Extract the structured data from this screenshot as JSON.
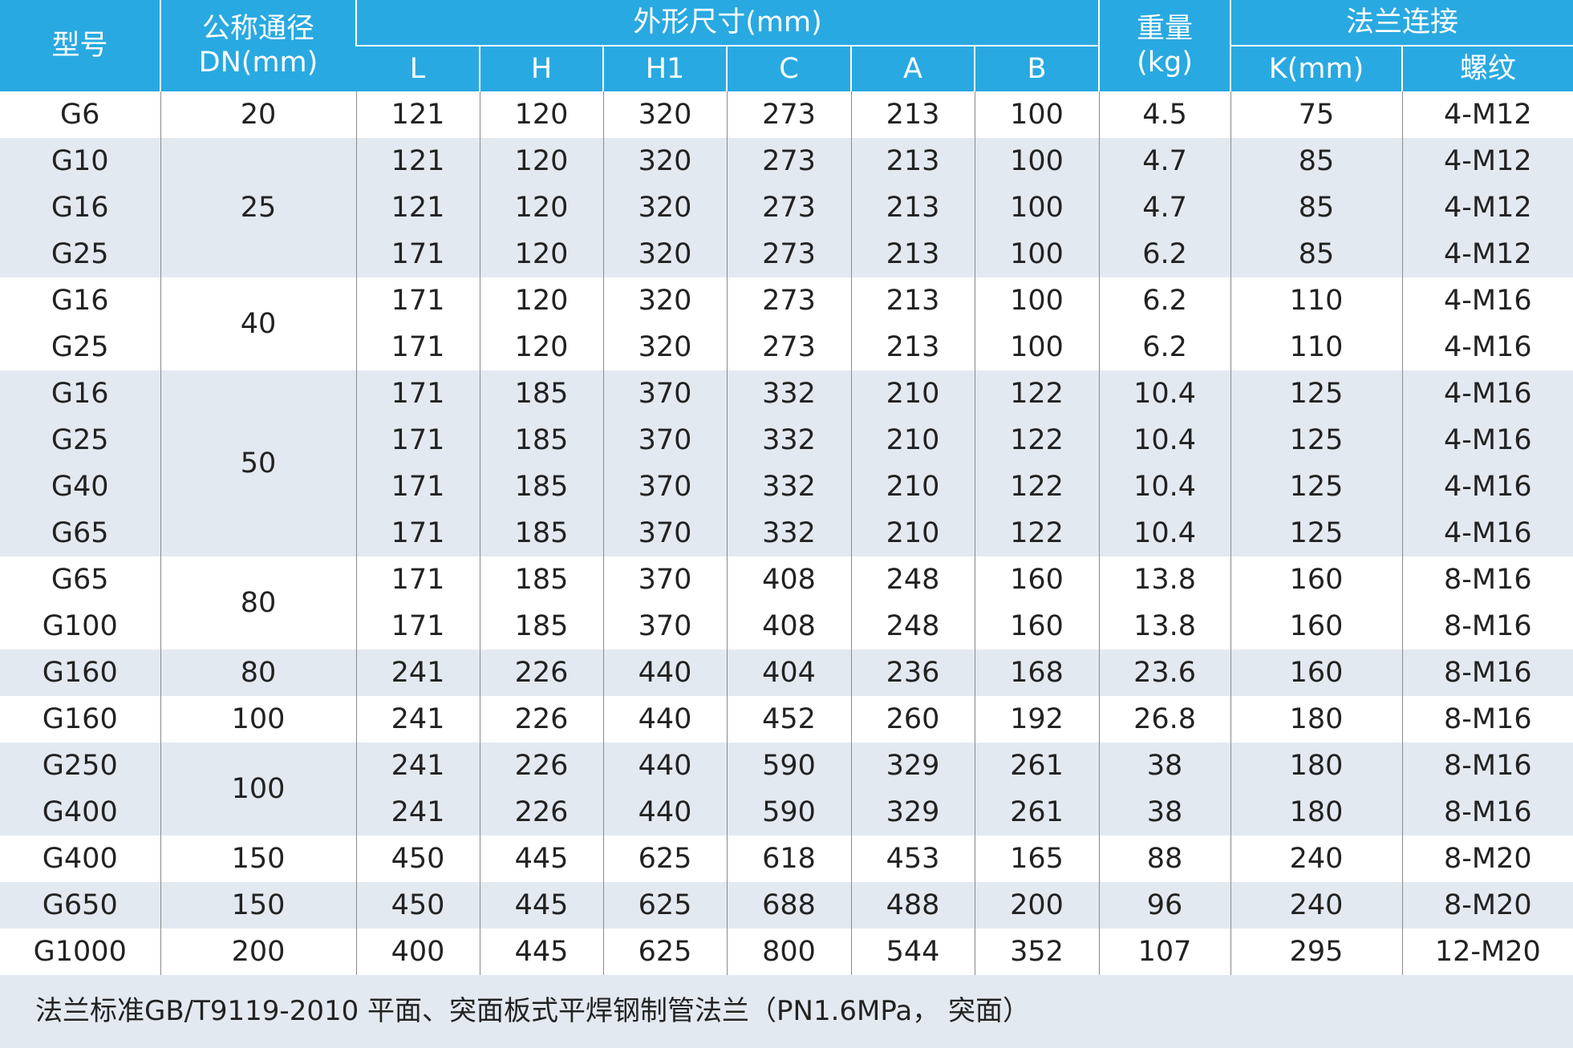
{
  "header": {
    "model": "型号",
    "dn": [
      "公称通径",
      "DN(mm)"
    ],
    "dimensions": "外形尺寸(mm)",
    "dimension_columns": [
      "L",
      "H",
      "H1",
      "C",
      "A",
      "B"
    ],
    "weight": [
      "重量",
      "(kg)"
    ],
    "flange": "法兰连接",
    "flange_columns": [
      "K(mm)",
      "螺纹"
    ]
  },
  "groups": [
    {
      "dn": 20,
      "rows": [
        [
          "G6",
          121,
          120,
          320,
          273,
          213,
          100,
          4.5,
          75,
          "4-M12"
        ]
      ]
    },
    {
      "dn": 25,
      "rows": [
        [
          "G10",
          121,
          120,
          320,
          273,
          213,
          100,
          4.7,
          85,
          "4-M12"
        ],
        [
          "G16",
          121,
          120,
          320,
          273,
          213,
          100,
          4.7,
          85,
          "4-M12"
        ],
        [
          "G25",
          171,
          120,
          320,
          273,
          213,
          100,
          6.2,
          85,
          "4-M12"
        ]
      ]
    },
    {
      "dn": 40,
      "rows": [
        [
          "G16",
          171,
          120,
          320,
          273,
          213,
          100,
          6.2,
          110,
          "4-M16"
        ],
        [
          "G25",
          171,
          120,
          320,
          273,
          213,
          100,
          6.2,
          110,
          "4-M16"
        ]
      ]
    },
    {
      "dn": 50,
      "rows": [
        [
          "G16",
          171,
          185,
          370,
          332,
          210,
          122,
          10.4,
          125,
          "4-M16"
        ],
        [
          "G25",
          171,
          185,
          370,
          332,
          210,
          122,
          10.4,
          125,
          "4-M16"
        ],
        [
          "G40",
          171,
          185,
          370,
          332,
          210,
          122,
          10.4,
          125,
          "4-M16"
        ],
        [
          "G65",
          171,
          185,
          370,
          332,
          210,
          122,
          10.4,
          125,
          "4-M16"
        ]
      ]
    },
    {
      "dn": 80,
      "rows": [
        [
          "G65",
          171,
          185,
          370,
          408,
          248,
          160,
          13.8,
          160,
          "8-M16"
        ],
        [
          "G100",
          171,
          185,
          370,
          408,
          248,
          160,
          13.8,
          160,
          "8-M16"
        ]
      ]
    },
    {
      "dn": 80,
      "rows": [
        [
          "G160",
          241,
          226,
          440,
          404,
          236,
          168,
          23.6,
          160,
          "8-M16"
        ]
      ]
    },
    {
      "dn": 100,
      "rows": [
        [
          "G160",
          241,
          226,
          440,
          452,
          260,
          192,
          26.8,
          180,
          "8-M16"
        ]
      ]
    },
    {
      "dn": 100,
      "rows": [
        [
          "G250",
          241,
          226,
          440,
          590,
          329,
          261,
          38,
          180,
          "8-M16"
        ],
        [
          "G400",
          241,
          226,
          440,
          590,
          329,
          261,
          38,
          180,
          "8-M16"
        ]
      ]
    },
    {
      "dn": 150,
      "rows": [
        [
          "G400",
          450,
          445,
          625,
          618,
          453,
          165,
          88,
          240,
          "8-M20"
        ]
      ]
    },
    {
      "dn": 150,
      "rows": [
        [
          "G650",
          450,
          445,
          625,
          688,
          488,
          200,
          96,
          240,
          "8-M20"
        ]
      ]
    },
    {
      "dn": 200,
      "rows": [
        [
          "G1000",
          400,
          445,
          625,
          800,
          544,
          352,
          107,
          295,
          "12-M20"
        ]
      ]
    }
  ],
  "footnote": "法兰标准GB/T9119-2010 平面、突面板式平焊钢制管法兰（PN1.6MPa， 突面）"
}
